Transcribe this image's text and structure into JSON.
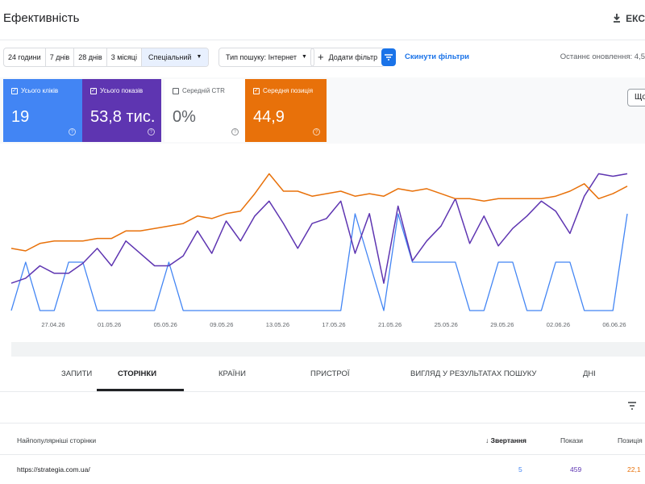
{
  "header": {
    "title": "Ефективність",
    "export_label": "ЕКС"
  },
  "toolbar": {
    "date_ranges": [
      "24 години",
      "7 днів",
      "28 днів",
      "3 місяці"
    ],
    "date_custom": "Спеціальний",
    "search_type": "Тип пошуку: Інтернет",
    "add_filter": "Додати фільтр",
    "reset_filters": "Скинути фільтри",
    "last_updated": "Останнє оновлення: 4,5"
  },
  "metrics": {
    "clicks": {
      "label": "Усього кліків",
      "value": "19",
      "checked": true
    },
    "impressions": {
      "label": "Усього показів",
      "value": "53,8 тис.",
      "checked": true
    },
    "ctr": {
      "label": "Середній CTR",
      "value": "0%",
      "checked": false
    },
    "position": {
      "label": "Середня позиція",
      "value": "44,9",
      "checked": true
    }
  },
  "right_button": "Що",
  "colors": {
    "clicks": "#4285f4",
    "impressions": "#5e35b1",
    "position": "#e8710a",
    "accent": "#1a73e8"
  },
  "chart_data": {
    "type": "line",
    "x_ticks": [
      "27.04.26",
      "01.05.26",
      "05.05.26",
      "09.05.26",
      "13.05.26",
      "17.05.26",
      "21.05.26",
      "25.05.26",
      "29.05.26",
      "02.06.26",
      "06.06.26"
    ],
    "axes_labels_shown": false,
    "series": [
      {
        "name": "Усього кліків",
        "values": [
          0,
          1,
          0,
          0,
          1,
          1,
          0,
          0,
          0,
          0,
          0,
          1,
          0,
          0,
          0,
          0,
          0,
          0,
          0,
          0,
          0,
          0,
          0,
          0,
          2,
          1,
          0,
          2,
          1,
          1,
          1,
          1,
          0,
          0,
          1,
          1,
          0,
          0,
          1,
          1,
          0,
          0,
          0,
          2
        ]
      },
      {
        "name": "Усього показів",
        "values": [
          51,
          53,
          58,
          55,
          55,
          59,
          65,
          58,
          68,
          63,
          58,
          58,
          62,
          72,
          63,
          76,
          68,
          78,
          84,
          75,
          65,
          75,
          77,
          84,
          63,
          79,
          51,
          82,
          60,
          68,
          74,
          85,
          67,
          78,
          66,
          73,
          78,
          84,
          80,
          71,
          86,
          95,
          94,
          95
        ]
      },
      {
        "name": "Середня позиція",
        "values": [
          25,
          24,
          27,
          28,
          28,
          28,
          29,
          29,
          32,
          32,
          33,
          34,
          35,
          38,
          37,
          39,
          40,
          47,
          55,
          48,
          48,
          46,
          47,
          48,
          46,
          47,
          46,
          49,
          48,
          49,
          47,
          45,
          45,
          44,
          45,
          45,
          45,
          45,
          46,
          48,
          51,
          45,
          47,
          50
        ]
      }
    ]
  },
  "tabs": [
    "ЗАПИТИ",
    "СТОРІНКИ",
    "КРАЇНИ",
    "ПРИСТРОЇ",
    "ВИГЛЯД У РЕЗУЛЬТАТАХ ПОШУКУ",
    "ДНІ"
  ],
  "table": {
    "headers": {
      "page": "Найпопулярніші сторінки",
      "clicks": "Звертання",
      "impressions": "Покази",
      "position": "Позиція"
    },
    "rows": [
      {
        "page": "https://strategia.com.ua/",
        "clicks": "5",
        "impressions": "459",
        "position": "22,1"
      }
    ]
  }
}
